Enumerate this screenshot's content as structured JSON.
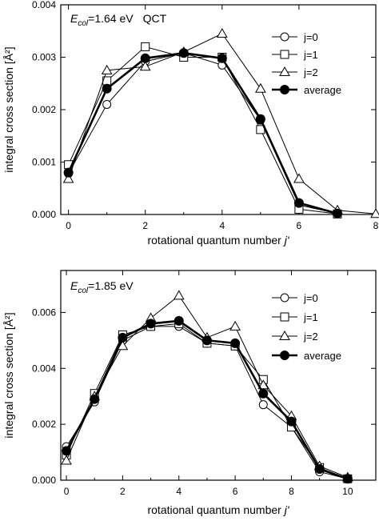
{
  "chart_data": [
    {
      "type": "line",
      "annotation": {
        "e_main": "E",
        "e_sub": "col",
        "e_value": "=1.64 eV",
        "method": "QCT"
      },
      "xlabel": "rotational quantum number",
      "xlabel_symbol": "j'",
      "ylabel": "integral cross section [Å²]",
      "xlim": [
        -0.2,
        8
      ],
      "ylim": [
        0,
        0.004
      ],
      "xticks": [
        0,
        2,
        4,
        6,
        8
      ],
      "xtick_labels": [
        "0",
        "2",
        "4",
        "6",
        "8"
      ],
      "yticks": [
        0,
        0.001,
        0.002,
        0.003,
        0.004
      ],
      "ytick_labels": [
        "0.000",
        "0.001",
        "0.002",
        "0.003",
        "0.004"
      ],
      "legend_position": "top-right",
      "series": [
        {
          "name": "j=0",
          "marker": "circle",
          "x": [
            0,
            1,
            2,
            3,
            4,
            5,
            6,
            7
          ],
          "values": [
            0.00078,
            0.0021,
            0.00292,
            0.00308,
            0.00285,
            0.0018,
            0.00018,
            2e-05
          ]
        },
        {
          "name": "j=1",
          "marker": "square",
          "x": [
            0,
            1,
            2,
            3,
            4,
            5,
            6,
            7
          ],
          "values": [
            0.00095,
            0.00255,
            0.0032,
            0.003,
            0.003,
            0.00162,
            0.0001,
            1e-05
          ]
        },
        {
          "name": "j=2",
          "marker": "triangle",
          "x": [
            0,
            1,
            2,
            3,
            4,
            5,
            6,
            7,
            8
          ],
          "values": [
            0.00068,
            0.00275,
            0.00282,
            0.0031,
            0.00345,
            0.0024,
            0.00068,
            8e-05,
            1e-05
          ]
        },
        {
          "name": "average",
          "marker": "filled-circle",
          "x": [
            0,
            1,
            2,
            3,
            4,
            5,
            6,
            7
          ],
          "values": [
            0.0008,
            0.0024,
            0.00298,
            0.00308,
            0.00298,
            0.00182,
            0.00022,
            2e-05
          ]
        }
      ]
    },
    {
      "type": "line",
      "annotation": {
        "e_main": "E",
        "e_sub": "col",
        "e_value": "=1.85 eV"
      },
      "xlabel": "rotational quantum number",
      "xlabel_symbol": "j'",
      "ylabel": "integral cross section [Å²]",
      "xlim": [
        -0.2,
        11
      ],
      "ylim": [
        0,
        0.0075
      ],
      "xticks": [
        0,
        2,
        4,
        6,
        8,
        10
      ],
      "xtick_labels": [
        "0",
        "2",
        "4",
        "6",
        "8",
        "10"
      ],
      "yticks": [
        0,
        0.002,
        0.004,
        0.006
      ],
      "ytick_labels": [
        "0.000",
        "0.002",
        "0.004",
        "0.006"
      ],
      "legend_position": "top-right",
      "series": [
        {
          "name": "j=0",
          "marker": "circle",
          "x": [
            0,
            1,
            2,
            3,
            4,
            5,
            6,
            7,
            8,
            9,
            10
          ],
          "values": [
            0.0012,
            0.0028,
            0.005,
            0.0055,
            0.0055,
            0.0049,
            0.0048,
            0.0027,
            0.0019,
            0.0003,
            5e-05
          ]
        },
        {
          "name": "j=1",
          "marker": "square",
          "x": [
            0,
            1,
            2,
            3,
            4,
            5,
            6,
            7,
            8,
            9,
            10
          ],
          "values": [
            0.0009,
            0.0031,
            0.0052,
            0.0055,
            0.0056,
            0.0049,
            0.0048,
            0.0036,
            0.0019,
            0.00045,
            5e-05
          ]
        },
        {
          "name": "j=2",
          "marker": "triangle",
          "x": [
            0,
            1,
            2,
            3,
            4,
            5,
            6,
            7,
            8,
            9,
            10
          ],
          "values": [
            0.0007,
            0.003,
            0.0048,
            0.0058,
            0.0066,
            0.0051,
            0.0055,
            0.0034,
            0.0023,
            0.0005,
            0.0001
          ]
        },
        {
          "name": "average",
          "marker": "filled-circle",
          "x": [
            0,
            1,
            2,
            3,
            4,
            5,
            6,
            7,
            8,
            9,
            10
          ],
          "values": [
            0.00105,
            0.0029,
            0.0051,
            0.0056,
            0.0057,
            0.005,
            0.0049,
            0.0031,
            0.0021,
            0.0004,
            5e-05
          ]
        }
      ]
    }
  ]
}
